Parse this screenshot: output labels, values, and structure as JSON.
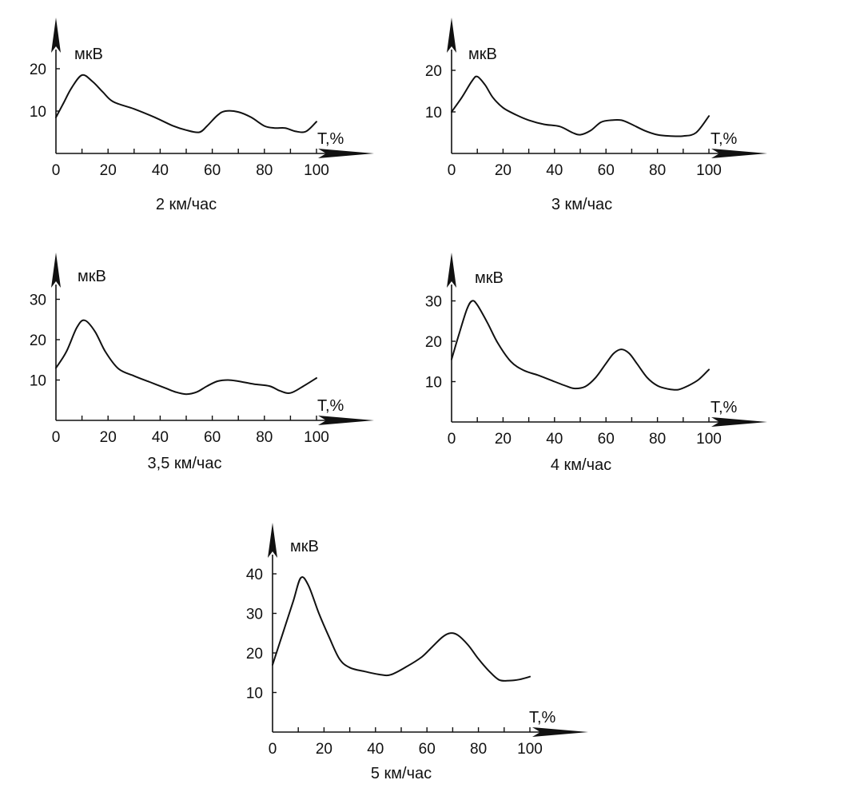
{
  "chart_data": [
    {
      "type": "line",
      "title": "2 км/час",
      "ylabel": "мкВ",
      "xlabel": "T,%",
      "xlim": [
        0,
        100
      ],
      "ylim": [
        0,
        20
      ],
      "xticks": [
        "0",
        "20",
        "40",
        "60",
        "80",
        "100"
      ],
      "yticks": [
        "10",
        "20"
      ],
      "series": [
        {
          "x": [
            0,
            3,
            6,
            10,
            14,
            18,
            22,
            30,
            38,
            45,
            50,
            55,
            58,
            62,
            65,
            70,
            75,
            80,
            84,
            88,
            92,
            96,
            100
          ],
          "y": [
            8.5,
            12,
            15.5,
            18.5,
            17,
            14.5,
            12.2,
            10.5,
            8.5,
            6.5,
            5.5,
            5,
            6.5,
            9,
            10,
            9.8,
            8.5,
            6.5,
            6,
            6,
            5.2,
            5.2,
            7.5
          ]
        }
      ]
    },
    {
      "type": "line",
      "title": "3 км/час",
      "ylabel": "мкВ",
      "xlabel": "T,%",
      "xlim": [
        0,
        100
      ],
      "ylim": [
        0,
        20
      ],
      "xticks": [
        "0",
        "20",
        "40",
        "60",
        "80",
        "100"
      ],
      "yticks": [
        "10",
        "20"
      ],
      "series": [
        {
          "x": [
            0,
            4,
            8,
            10,
            13,
            16,
            20,
            25,
            30,
            36,
            42,
            47,
            50,
            54,
            58,
            62,
            66,
            70,
            75,
            80,
            85,
            90,
            95,
            100
          ],
          "y": [
            10,
            13.5,
            17.5,
            18.5,
            16.5,
            13.5,
            11,
            9.3,
            8,
            7,
            6.5,
            5,
            4.5,
            5.5,
            7.5,
            8,
            8,
            7,
            5.5,
            4.5,
            4.2,
            4.2,
            5,
            9
          ]
        }
      ]
    },
    {
      "type": "line",
      "title": "3,5 км/час",
      "ylabel": "мкВ",
      "xlabel": "T,%",
      "xlim": [
        0,
        100
      ],
      "ylim": [
        0,
        30
      ],
      "xticks": [
        "0",
        "20",
        "40",
        "60",
        "80",
        "100"
      ],
      "yticks": [
        "10",
        "20",
        "30"
      ],
      "series": [
        {
          "x": [
            0,
            4,
            8,
            11,
            15,
            19,
            24,
            30,
            36,
            42,
            46,
            50,
            54,
            58,
            62,
            66,
            70,
            76,
            82,
            86,
            90,
            95,
            100
          ],
          "y": [
            13,
            17,
            23,
            24.8,
            22,
            17,
            12.8,
            11,
            9.5,
            8,
            7,
            6.5,
            7,
            8.5,
            9.7,
            10,
            9.7,
            9,
            8.5,
            7.3,
            6.8,
            8.5,
            10.5
          ]
        }
      ]
    },
    {
      "type": "line",
      "title": "4 км/час",
      "ylabel": "мкВ",
      "xlabel": "T,%",
      "xlim": [
        0,
        100
      ],
      "ylim": [
        0,
        30
      ],
      "xticks": [
        "0",
        "20",
        "40",
        "60",
        "80",
        "100"
      ],
      "yticks": [
        "10",
        "20",
        "30"
      ],
      "series": [
        {
          "x": [
            0,
            3,
            6,
            8,
            10,
            14,
            18,
            23,
            28,
            34,
            40,
            45,
            48,
            52,
            56,
            60,
            63,
            66,
            69,
            72,
            76,
            80,
            84,
            88,
            92,
            96,
            100
          ],
          "y": [
            15.5,
            22,
            28,
            30,
            29,
            24.5,
            19.5,
            15,
            12.8,
            11.5,
            10,
            8.8,
            8.3,
            8.8,
            11,
            14.5,
            17,
            18,
            17,
            14.5,
            11,
            9,
            8.2,
            8,
            9,
            10.5,
            13
          ]
        }
      ]
    },
    {
      "type": "line",
      "title": "5 км/час",
      "ylabel": "мкВ",
      "xlabel": "T,%",
      "xlim": [
        0,
        100
      ],
      "ylim": [
        0,
        40
      ],
      "xticks": [
        "0",
        "20",
        "40",
        "60",
        "80",
        "100"
      ],
      "yticks": [
        "10",
        "20",
        "30",
        "40"
      ],
      "series": [
        {
          "x": [
            0,
            4,
            8,
            11,
            14,
            18,
            22,
            26,
            30,
            36,
            42,
            46,
            52,
            58,
            62,
            66,
            69,
            72,
            76,
            80,
            84,
            88,
            92,
            96,
            100
          ],
          "y": [
            17,
            25,
            33,
            39,
            37,
            30,
            24,
            18.5,
            16.3,
            15.3,
            14.5,
            14.5,
            16.5,
            19,
            21.5,
            24,
            25,
            24.5,
            22,
            18.5,
            15.5,
            13.2,
            13,
            13.3,
            14
          ]
        }
      ]
    }
  ]
}
